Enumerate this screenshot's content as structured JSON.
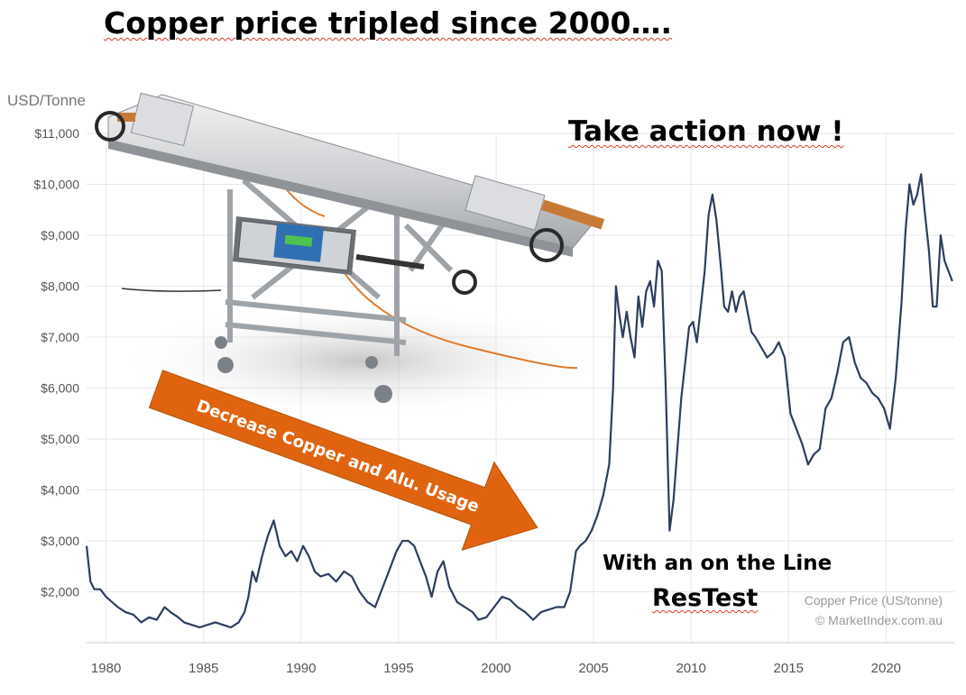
{
  "headline": "Copper price tripled since 2000….",
  "call_to_action": "Take action now !",
  "subtext": {
    "line1": "With an on the Line",
    "line2": "ResTest"
  },
  "arrow_label": "Decrease Copper and Alu. Usage",
  "colors": {
    "line": "#2c3e5e",
    "grid": "#e6e6e6",
    "arrow": "#e0640f",
    "arrow_text": "#ffffff"
  },
  "chart_data": {
    "type": "line",
    "ylabel": "USD/Tonne",
    "y_ticks": [
      2000,
      3000,
      4000,
      5000,
      6000,
      7000,
      8000,
      9000,
      10000,
      11000
    ],
    "y_tick_labels": [
      "$2,000",
      "$3,000",
      "$4,000",
      "$5,000",
      "$6,000",
      "$7,000",
      "$8,000",
      "$9,000",
      "$10,000",
      "$11,000"
    ],
    "x_ticks": [
      1980,
      1985,
      1990,
      1995,
      2000,
      2005,
      2010,
      2015,
      2020
    ],
    "xlim": [
      1979,
      2023.5
    ],
    "ylim": [
      1000,
      11000
    ],
    "grid": true,
    "watermark": [
      "Copper Price (US/tonne)",
      "© MarketIndex.com.au"
    ],
    "series": [
      {
        "name": "Copper Price (US/tonne)",
        "x": [
          1979.0,
          1979.2,
          1979.4,
          1979.7,
          1980.0,
          1980.3,
          1980.6,
          1981.0,
          1981.4,
          1981.8,
          1982.2,
          1982.6,
          1983.0,
          1983.3,
          1983.7,
          1984.0,
          1984.4,
          1984.8,
          1985.2,
          1985.6,
          1986.0,
          1986.4,
          1986.8,
          1987.1,
          1987.3,
          1987.5,
          1987.7,
          1988.0,
          1988.3,
          1988.6,
          1988.9,
          1989.2,
          1989.5,
          1989.8,
          1990.1,
          1990.4,
          1990.7,
          1991.0,
          1991.4,
          1991.8,
          1992.2,
          1992.6,
          1993.0,
          1993.4,
          1993.8,
          1994.2,
          1994.6,
          1994.9,
          1995.2,
          1995.5,
          1995.8,
          1996.1,
          1996.4,
          1996.7,
          1997.0,
          1997.3,
          1997.6,
          1998.0,
          1998.4,
          1998.8,
          1999.1,
          1999.5,
          1999.9,
          2000.3,
          2000.7,
          2001.1,
          2001.5,
          2001.9,
          2002.3,
          2002.7,
          2003.1,
          2003.5,
          2003.8,
          2004.1,
          2004.3,
          2004.6,
          2004.9,
          2005.2,
          2005.5,
          2005.8,
          2006.0,
          2006.15,
          2006.3,
          2006.5,
          2006.7,
          2006.9,
          2007.1,
          2007.3,
          2007.5,
          2007.7,
          2007.9,
          2008.1,
          2008.3,
          2008.5,
          2008.7,
          2008.9,
          2009.1,
          2009.3,
          2009.5,
          2009.7,
          2009.9,
          2010.1,
          2010.3,
          2010.5,
          2010.7,
          2010.9,
          2011.1,
          2011.3,
          2011.5,
          2011.7,
          2011.9,
          2012.1,
          2012.3,
          2012.5,
          2012.7,
          2012.9,
          2013.1,
          2013.3,
          2013.6,
          2013.9,
          2014.2,
          2014.5,
          2014.8,
          2015.1,
          2015.4,
          2015.7,
          2016.0,
          2016.3,
          2016.6,
          2016.9,
          2017.2,
          2017.5,
          2017.8,
          2018.1,
          2018.4,
          2018.7,
          2019.0,
          2019.3,
          2019.6,
          2019.9,
          2020.2,
          2020.5,
          2020.8,
          2021.0,
          2021.2,
          2021.4,
          2021.6,
          2021.8,
          2022.0,
          2022.2,
          2022.4,
          2022.6,
          2022.8,
          2023.0,
          2023.2,
          2023.4
        ],
        "values": [
          2900,
          2200,
          2050,
          2050,
          1900,
          1800,
          1700,
          1600,
          1550,
          1400,
          1500,
          1450,
          1700,
          1600,
          1500,
          1400,
          1350,
          1300,
          1350,
          1400,
          1350,
          1300,
          1400,
          1600,
          1900,
          2400,
          2200,
          2700,
          3100,
          3400,
          2900,
          2700,
          2800,
          2600,
          2900,
          2700,
          2400,
          2300,
          2350,
          2200,
          2400,
          2300,
          2000,
          1800,
          1700,
          2100,
          2500,
          2800,
          3000,
          3000,
          2900,
          2600,
          2300,
          1900,
          2400,
          2600,
          2100,
          1800,
          1700,
          1600,
          1450,
          1500,
          1700,
          1900,
          1850,
          1700,
          1600,
          1450,
          1600,
          1650,
          1700,
          1700,
          2000,
          2800,
          2900,
          3000,
          3200,
          3500,
          3900,
          4500,
          6000,
          8000,
          7500,
          7000,
          7500,
          7000,
          6600,
          7800,
          7200,
          7900,
          8100,
          7600,
          8500,
          8300,
          6000,
          3200,
          3800,
          4800,
          5800,
          6500,
          7200,
          7300,
          6900,
          7600,
          8300,
          9400,
          9800,
          9300,
          8500,
          7600,
          7500,
          7900,
          7500,
          7800,
          7900,
          7500,
          7100,
          7000,
          6800,
          6600,
          6700,
          6900,
          6600,
          5500,
          5200,
          4900,
          4500,
          4700,
          4800,
          5600,
          5800,
          6300,
          6900,
          7000,
          6500,
          6200,
          6100,
          5900,
          5800,
          5600,
          5200,
          6200,
          7700,
          9100,
          10000,
          9600,
          9800,
          10200,
          9400,
          8700,
          7600,
          7600,
          9000,
          8500,
          8300,
          8100
        ]
      }
    ]
  }
}
